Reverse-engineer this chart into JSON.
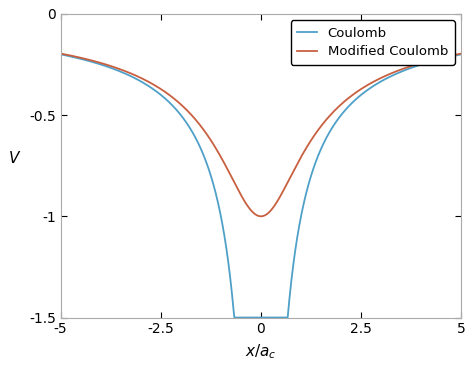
{
  "title": "",
  "xlabel": "$x/a_c$",
  "ylabel": "$V$",
  "xlim": [
    -5,
    5
  ],
  "ylim": [
    -1.5,
    0
  ],
  "xticks": [
    -5,
    -2.5,
    0,
    2.5,
    5
  ],
  "yticks": [
    0,
    -0.5,
    -1,
    -1.5
  ],
  "coulomb_color": "#4fa0c8",
  "modified_color": "#c86040",
  "coulomb_label": "Coulomb",
  "modified_label": "Modified Coulomb",
  "softening": 1.0,
  "coulomb_epsilon": 0.05,
  "clip_min": -1.5,
  "line_width": 1.3,
  "background_color": "#ffffff",
  "legend_fontsize": 9.5,
  "axis_fontsize": 11,
  "tick_fontsize": 10
}
